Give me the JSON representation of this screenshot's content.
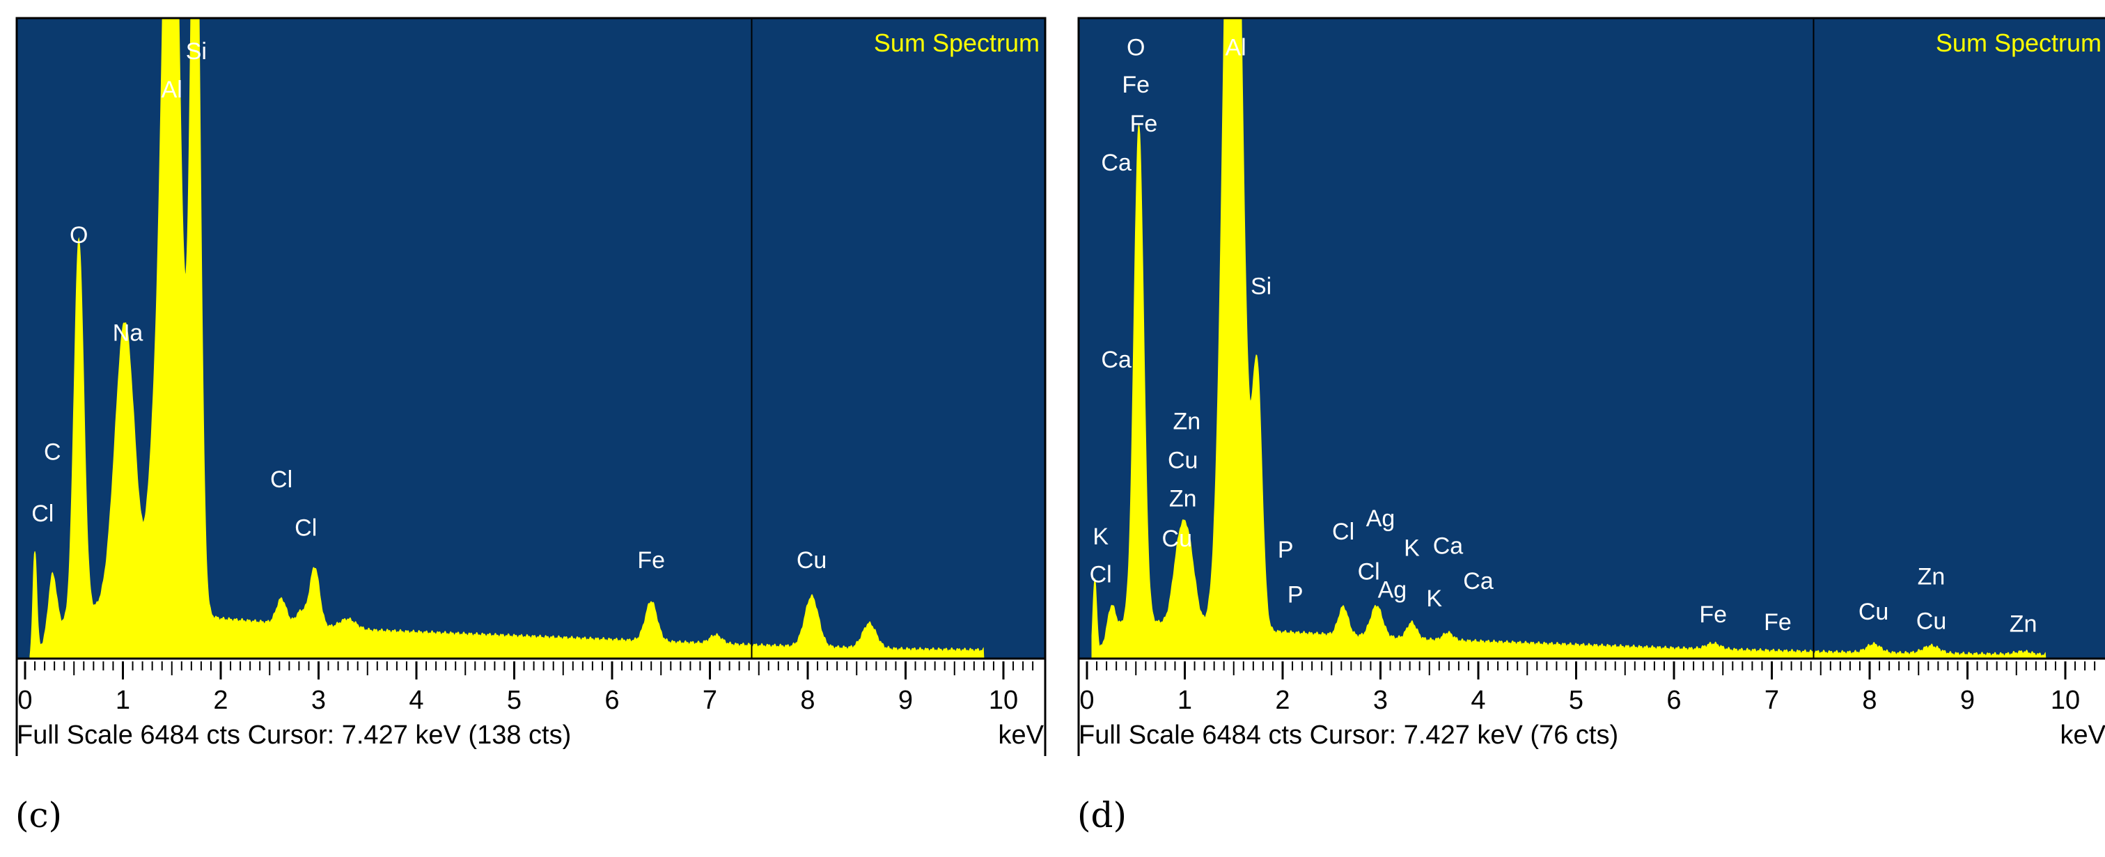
{
  "chart_data": [
    {
      "type": "area",
      "panel_label": "(c)",
      "title": "Sum Spectrum",
      "x_unit": "keV",
      "xlim": [
        0,
        10.3
      ],
      "x_ticks": [
        0,
        1,
        2,
        3,
        4,
        5,
        6,
        7,
        8,
        9,
        10
      ],
      "full_scale_counts": 6484,
      "status_text": "Full Scale 6484 cts  Cursor: 7.427 keV (138 cts)",
      "cursor_kev": 7.427,
      "colors": {
        "background": "#0b3a6e",
        "fill": "#ffff00",
        "frame": "#000000"
      },
      "peaks": [
        {
          "x": 0.1,
          "y": 1080,
          "w": 0.02
        },
        {
          "x": 0.28,
          "y": 620,
          "w": 0.04
        },
        {
          "x": 0.55,
          "y": 3970,
          "w": 0.05
        },
        {
          "x": 1.02,
          "y": 2900,
          "w": 0.1
        },
        {
          "x": 1.3,
          "y": 900,
          "w": 0.06
        },
        {
          "x": 1.49,
          "y": 9500,
          "w": 0.09
        },
        {
          "x": 1.74,
          "y": 8500,
          "w": 0.05
        },
        {
          "x": 2.62,
          "y": 260,
          "w": 0.05
        },
        {
          "x": 2.82,
          "y": 140,
          "w": 0.05
        },
        {
          "x": 2.96,
          "y": 620,
          "w": 0.05
        },
        {
          "x": 3.3,
          "y": 100,
          "w": 0.08
        },
        {
          "x": 6.4,
          "y": 420,
          "w": 0.06
        },
        {
          "x": 7.06,
          "y": 90,
          "w": 0.06
        },
        {
          "x": 8.04,
          "y": 530,
          "w": 0.07
        },
        {
          "x": 8.63,
          "y": 260,
          "w": 0.07
        }
      ],
      "background_counts": [
        [
          0.05,
          0
        ],
        [
          0.35,
          350
        ],
        [
          1.0,
          650
        ],
        [
          2.0,
          420
        ],
        [
          3.5,
          300
        ],
        [
          6.0,
          200
        ],
        [
          7.5,
          140
        ],
        [
          9.0,
          100
        ],
        [
          9.8,
          90
        ]
      ],
      "labels": [
        {
          "text": "Si",
          "x": 1.75,
          "y": 6300
        },
        {
          "text": "Al",
          "x": 1.5,
          "y": 5900
        },
        {
          "text": "O",
          "x": 0.55,
          "y": 4370
        },
        {
          "text": "Na",
          "x": 1.05,
          "y": 3340
        },
        {
          "text": "C",
          "x": 0.28,
          "y": 2090
        },
        {
          "text": "Cl",
          "x": 0.18,
          "y": 1440
        },
        {
          "text": "Cl",
          "x": 2.62,
          "y": 1800
        },
        {
          "text": "Cl",
          "x": 2.87,
          "y": 1290
        },
        {
          "text": "Fe",
          "x": 6.4,
          "y": 950
        },
        {
          "text": "Cu",
          "x": 8.04,
          "y": 950
        }
      ]
    },
    {
      "type": "area",
      "panel_label": "(d)",
      "title": "Sum Spectrum",
      "x_unit": "keV",
      "xlim": [
        0,
        10.3
      ],
      "x_ticks": [
        0,
        1,
        2,
        3,
        4,
        5,
        6,
        7,
        8,
        9,
        10
      ],
      "full_scale_counts": 6484,
      "status_text": "Full Scale 6484 cts  Cursor: 7.427 keV (76 cts)",
      "cursor_kev": 7.427,
      "colors": {
        "background": "#0b3a6e",
        "fill": "#ffff00",
        "frame": "#000000"
      },
      "peaks": [
        {
          "x": 0.08,
          "y": 790,
          "w": 0.02
        },
        {
          "x": 0.25,
          "y": 320,
          "w": 0.04
        },
        {
          "x": 0.53,
          "y": 5200,
          "w": 0.05
        },
        {
          "x": 0.93,
          "y": 580,
          "w": 0.06
        },
        {
          "x": 1.03,
          "y": 880,
          "w": 0.07
        },
        {
          "x": 1.49,
          "y": 10500,
          "w": 0.09
        },
        {
          "x": 1.74,
          "y": 2650,
          "w": 0.05
        },
        {
          "x": 2.62,
          "y": 300,
          "w": 0.05
        },
        {
          "x": 2.96,
          "y": 330,
          "w": 0.06
        },
        {
          "x": 3.32,
          "y": 170,
          "w": 0.05
        },
        {
          "x": 3.69,
          "y": 80,
          "w": 0.05
        },
        {
          "x": 6.4,
          "y": 60,
          "w": 0.07
        },
        {
          "x": 8.04,
          "y": 90,
          "w": 0.07
        },
        {
          "x": 8.63,
          "y": 80,
          "w": 0.08
        },
        {
          "x": 9.57,
          "y": 30,
          "w": 0.08
        }
      ],
      "background_counts": [
        [
          0.05,
          0
        ],
        [
          0.4,
          420
        ],
        [
          1.0,
          350
        ],
        [
          2.0,
          280
        ],
        [
          3.5,
          200
        ],
        [
          6.0,
          110
        ],
        [
          7.5,
          70
        ],
        [
          9.0,
          50
        ],
        [
          9.8,
          40
        ]
      ],
      "labels": [
        {
          "text": "O",
          "x": 0.5,
          "y": 6340
        },
        {
          "text": "Fe",
          "x": 0.5,
          "y": 5950
        },
        {
          "text": "Al",
          "x": 1.52,
          "y": 6340
        },
        {
          "text": "Fe",
          "x": 0.58,
          "y": 5540
        },
        {
          "text": "Ca",
          "x": 0.3,
          "y": 5130
        },
        {
          "text": "Si",
          "x": 1.78,
          "y": 3830
        },
        {
          "text": "Ca",
          "x": 0.3,
          "y": 3060
        },
        {
          "text": "Zn",
          "x": 1.02,
          "y": 2410
        },
        {
          "text": "Cu",
          "x": 0.98,
          "y": 2000
        },
        {
          "text": "Zn",
          "x": 0.98,
          "y": 1600
        },
        {
          "text": "Cu",
          "x": 0.92,
          "y": 1180
        },
        {
          "text": "K",
          "x": 0.14,
          "y": 1200
        },
        {
          "text": "Cl",
          "x": 0.14,
          "y": 800
        },
        {
          "text": "P",
          "x": 2.03,
          "y": 1060
        },
        {
          "text": "P",
          "x": 2.13,
          "y": 590
        },
        {
          "text": "Cl",
          "x": 2.62,
          "y": 1250
        },
        {
          "text": "Ag",
          "x": 3.0,
          "y": 1390
        },
        {
          "text": "Cl",
          "x": 2.88,
          "y": 830
        },
        {
          "text": "Ag",
          "x": 3.12,
          "y": 640
        },
        {
          "text": "K",
          "x": 3.32,
          "y": 1080
        },
        {
          "text": "Ca",
          "x": 3.69,
          "y": 1100
        },
        {
          "text": "Ca",
          "x": 4.0,
          "y": 730
        },
        {
          "text": "K",
          "x": 3.55,
          "y": 550
        },
        {
          "text": "Fe",
          "x": 6.4,
          "y": 380
        },
        {
          "text": "Fe",
          "x": 7.06,
          "y": 300
        },
        {
          "text": "Cu",
          "x": 8.04,
          "y": 410
        },
        {
          "text": "Zn",
          "x": 8.63,
          "y": 780
        },
        {
          "text": "Cu",
          "x": 8.63,
          "y": 310
        },
        {
          "text": "Zn",
          "x": 9.57,
          "y": 280
        }
      ]
    }
  ]
}
